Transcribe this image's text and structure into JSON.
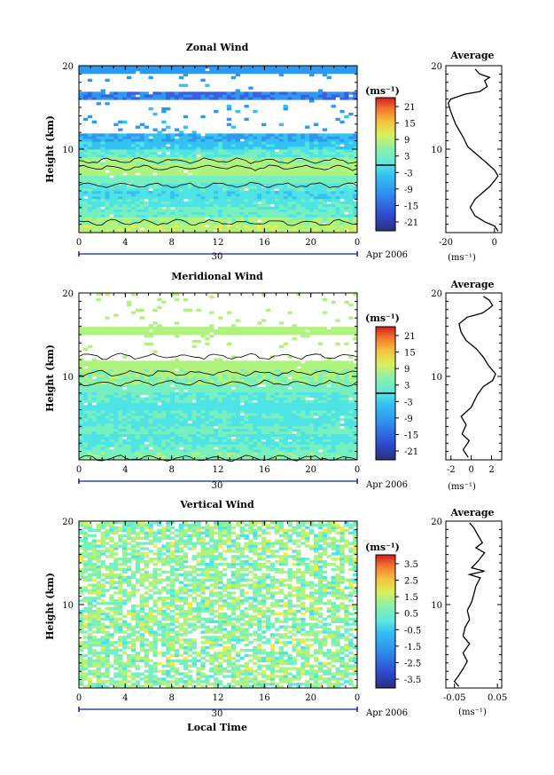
{
  "panels": [
    {
      "key": "zonal",
      "title": "Zonal Wind",
      "ylabel": "Height (km)",
      "unit": "(ms⁻¹)",
      "colorbar_ticks": [
        "21",
        "15",
        "9",
        "3",
        "-3",
        "-9",
        "-15",
        "-21"
      ],
      "profile_title": "Average",
      "profile_xticks": [
        "-20",
        "0"
      ],
      "profile_xlabel": "(ms⁻¹)",
      "date_label": "Apr 2006",
      "day_label": "30"
    },
    {
      "key": "meridional",
      "title": "Meridional Wind",
      "ylabel": "Height (km)",
      "unit": "(ms⁻¹)",
      "colorbar_ticks": [
        "21",
        "15",
        "9",
        "3",
        "-3",
        "-9",
        "-15",
        "-21"
      ],
      "profile_title": "Average",
      "profile_xticks": [
        "-2",
        "0",
        "2"
      ],
      "profile_xlabel": "(ms⁻¹)",
      "date_label": "Apr 2006",
      "day_label": "30"
    },
    {
      "key": "vertical",
      "title": "Vertical Wind",
      "ylabel": "Height (km)",
      "unit": "(ms⁻¹)",
      "colorbar_ticks": [
        "3.5",
        "2.5",
        "1.5",
        "0.5",
        "-0.5",
        "-1.5",
        "-2.5",
        "-3.5"
      ],
      "profile_title": "Average",
      "profile_xticks": [
        "-0.05",
        "0.05"
      ],
      "profile_xlabel": "(ms⁻¹)",
      "date_label": "Apr 2006",
      "day_label": "30",
      "xlabel": "Local Time"
    }
  ],
  "chart_data": [
    {
      "type": "heatmap",
      "title": "Zonal Wind",
      "ylabel": "Height (km)",
      "xlabel": "",
      "x_ticks": [
        "0",
        "4",
        "8",
        "12",
        "16",
        "20",
        "0"
      ],
      "y_ticks": [
        "10",
        "20"
      ],
      "xlim": [
        0,
        24
      ],
      "ylim": [
        0,
        20
      ],
      "colorbar": {
        "unit": "(ms⁻¹)",
        "range": [
          -24,
          24
        ],
        "ticks": [
          21,
          15,
          9,
          3,
          -3,
          -9,
          -15,
          -21
        ]
      },
      "height_bands": [
        {
          "h": [
            0,
            1
          ],
          "v": 3
        },
        {
          "h": [
            1,
            2
          ],
          "v": 1
        },
        {
          "h": [
            2,
            3
          ],
          "v": -3
        },
        {
          "h": [
            3,
            4
          ],
          "v": -5
        },
        {
          "h": [
            4,
            5
          ],
          "v": -7
        },
        {
          "h": [
            5,
            6
          ],
          "v": -5
        },
        {
          "h": [
            6,
            7
          ],
          "v": -2
        },
        {
          "h": [
            7,
            8
          ],
          "v": 2
        },
        {
          "h": [
            8,
            9
          ],
          "v": 1
        },
        {
          "h": [
            9,
            10
          ],
          "v": -4
        },
        {
          "h": [
            10,
            11
          ],
          "v": -9
        },
        {
          "h": [
            11,
            12
          ],
          "v": -12
        },
        {
          "h": [
            12,
            16
          ],
          "v": null
        },
        {
          "h": [
            16,
            17
          ],
          "v": -16
        },
        {
          "h": [
            17,
            19
          ],
          "v": null
        },
        {
          "h": [
            19,
            20
          ],
          "v": -14
        }
      ],
      "contour_levels": [
        0
      ]
    },
    {
      "type": "heatmap",
      "title": "Meridional Wind",
      "ylabel": "Height (km)",
      "xlabel": "",
      "x_ticks": [
        "0",
        "4",
        "8",
        "12",
        "16",
        "20",
        "0"
      ],
      "y_ticks": [
        "10",
        "20"
      ],
      "xlim": [
        0,
        24
      ],
      "ylim": [
        0,
        20
      ],
      "colorbar": {
        "unit": "(ms⁻¹)",
        "range": [
          -24,
          24
        ],
        "ticks": [
          21,
          15,
          9,
          3,
          -3,
          -9,
          -15,
          -21
        ]
      },
      "height_bands": [
        {
          "h": [
            0,
            1
          ],
          "v": -1
        },
        {
          "h": [
            1,
            2
          ],
          "v": -3
        },
        {
          "h": [
            2,
            3
          ],
          "v": -5
        },
        {
          "h": [
            3,
            4
          ],
          "v": -3
        },
        {
          "h": [
            4,
            5
          ],
          "v": -5
        },
        {
          "h": [
            5,
            6
          ],
          "v": -4
        },
        {
          "h": [
            6,
            7
          ],
          "v": -6
        },
        {
          "h": [
            7,
            8
          ],
          "v": -4
        },
        {
          "h": [
            8,
            9
          ],
          "v": -2
        },
        {
          "h": [
            9,
            10
          ],
          "v": 0
        },
        {
          "h": [
            10,
            11
          ],
          "v": 1
        },
        {
          "h": [
            11,
            12
          ],
          "v": 2
        },
        {
          "h": [
            12,
            15
          ],
          "v": null
        },
        {
          "h": [
            15,
            16
          ],
          "v": 2
        },
        {
          "h": [
            16,
            20
          ],
          "v": null
        }
      ],
      "contour_levels": [
        0
      ]
    },
    {
      "type": "heatmap",
      "title": "Vertical Wind",
      "ylabel": "Height (km)",
      "xlabel": "Local Time",
      "x_ticks": [
        "0",
        "4",
        "8",
        "12",
        "16",
        "20",
        "0"
      ],
      "y_ticks": [
        "10",
        "20"
      ],
      "xlim": [
        0,
        24
      ],
      "ylim": [
        0,
        20
      ],
      "colorbar": {
        "unit": "(ms⁻¹)",
        "range": [
          -4,
          4
        ],
        "ticks": [
          3.5,
          2.5,
          1.5,
          0.5,
          -0.5,
          -1.5,
          -2.5,
          -3.5
        ]
      },
      "height_bands": [
        {
          "h": [
            0,
            20
          ],
          "v": 0
        }
      ]
    },
    {
      "type": "line",
      "title": "Average",
      "panel": "Zonal Wind",
      "xlabel": "(ms⁻¹)",
      "xlim": [
        -20,
        3
      ],
      "ylim": [
        0,
        20
      ],
      "x_ticks": [
        "-20",
        "0"
      ],
      "y_ticks": [
        "10",
        "20"
      ],
      "points": [
        [
          1.5,
          0.2
        ],
        [
          0,
          0.8
        ],
        [
          -4,
          1.3
        ],
        [
          -8,
          2
        ],
        [
          -10,
          3
        ],
        [
          -8,
          4
        ],
        [
          -2,
          5.5
        ],
        [
          0,
          6.2
        ],
        [
          1.5,
          6.8
        ],
        [
          0,
          7.5
        ],
        [
          -3,
          8.3
        ],
        [
          -7,
          9.3
        ],
        [
          -11,
          10.3
        ],
        [
          -13,
          11.5
        ],
        [
          -16,
          13
        ],
        [
          -18,
          14.5
        ],
        [
          -19,
          15.5
        ],
        [
          -18,
          16
        ],
        [
          -12,
          16.6
        ],
        [
          -6,
          16.9
        ],
        [
          -3,
          17.5
        ],
        [
          -4,
          18.2
        ],
        [
          -2,
          18.6
        ],
        [
          -6,
          19
        ],
        [
          -8,
          19.6
        ]
      ]
    },
    {
      "type": "line",
      "title": "Average",
      "panel": "Meridional Wind",
      "xlabel": "(ms⁻¹)",
      "xlim": [
        -2.5,
        3
      ],
      "ylim": [
        0,
        20
      ],
      "x_ticks": [
        "-2",
        "0",
        "2"
      ],
      "y_ticks": [
        "10",
        "20"
      ],
      "points": [
        [
          -0.3,
          0.3
        ],
        [
          -0.8,
          1.2
        ],
        [
          -0.2,
          2.3
        ],
        [
          -0.9,
          3.1
        ],
        [
          -0.5,
          4.2
        ],
        [
          -1,
          5.2
        ],
        [
          0,
          6.3
        ],
        [
          0.6,
          7.8
        ],
        [
          1.2,
          8.8
        ],
        [
          2.1,
          9.5
        ],
        [
          2.4,
          10.3
        ],
        [
          1.7,
          11.3
        ],
        [
          1.2,
          12.3
        ],
        [
          0.5,
          13.3
        ],
        [
          -0.5,
          14.3
        ],
        [
          -1,
          15.3
        ],
        [
          -1.2,
          16.3
        ],
        [
          -0.4,
          17.1
        ],
        [
          1.1,
          17.6
        ],
        [
          1.7,
          18.1
        ],
        [
          2.1,
          18.5
        ],
        [
          1.8,
          19.1
        ],
        [
          1.2,
          19.6
        ]
      ]
    },
    {
      "type": "line",
      "title": "Average",
      "panel": "Vertical Wind",
      "xlabel": "(ms⁻¹)",
      "xlim": [
        -0.07,
        0.06
      ],
      "ylim": [
        0,
        20
      ],
      "x_ticks": [
        "-0.05",
        "0.05"
      ],
      "y_ticks": [
        "10",
        "20"
      ],
      "points": [
        [
          -0.04,
          0.2
        ],
        [
          -0.05,
          0.8
        ],
        [
          -0.04,
          1.5
        ],
        [
          -0.03,
          2.3
        ],
        [
          -0.02,
          3.2
        ],
        [
          -0.03,
          4.2
        ],
        [
          -0.015,
          5.3
        ],
        [
          -0.03,
          6.2
        ],
        [
          -0.025,
          7.3
        ],
        [
          -0.015,
          8.2
        ],
        [
          -0.02,
          9.3
        ],
        [
          -0.01,
          10.3
        ],
        [
          -0.005,
          11.2
        ],
        [
          0,
          12.2
        ],
        [
          0.01,
          13.2
        ],
        [
          -0.015,
          13.6
        ],
        [
          0.02,
          14
        ],
        [
          -0.01,
          14.4
        ],
        [
          0.005,
          15.2
        ],
        [
          0.02,
          16.2
        ],
        [
          0,
          16.8
        ],
        [
          0.015,
          17.4
        ],
        [
          0.005,
          18.3
        ],
        [
          -0.005,
          19.2
        ],
        [
          -0.015,
          19.8
        ]
      ]
    }
  ],
  "colors": {
    "scale": [
      "#2a3c9c",
      "#3a5fe0",
      "#2e98f0",
      "#34c2f2",
      "#4fe3e6",
      "#76f0bf",
      "#b0f27e",
      "#e9ee4f",
      "#f7c23c",
      "#f58a2e",
      "#e84629",
      "#c41c1c"
    ],
    "contour": "#000000",
    "axis": "#000000",
    "time_bar": "#1a1aa0"
  }
}
